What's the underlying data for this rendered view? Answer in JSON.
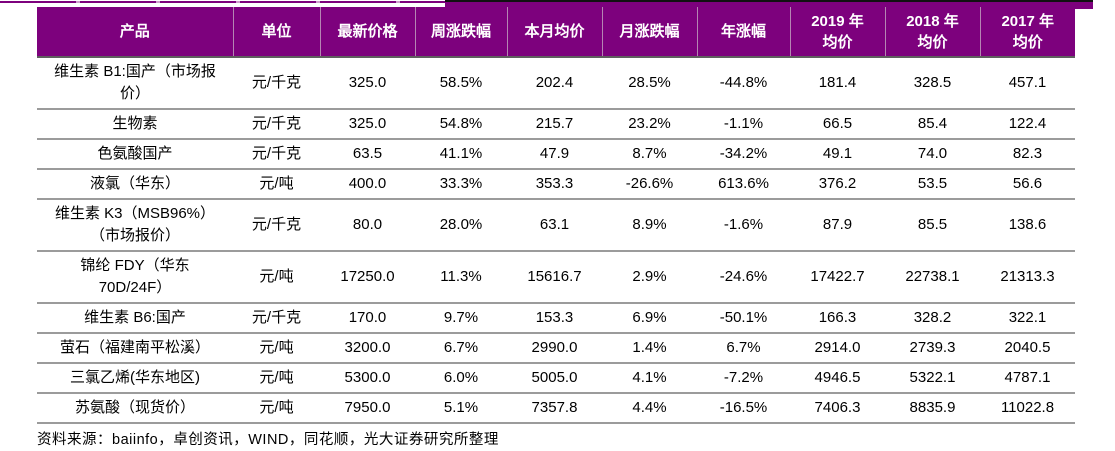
{
  "colors": {
    "header_bg": "#7d017d",
    "header_text": "#ffffff",
    "row_border": "#9b9b9b",
    "body_text": "#000000",
    "top_black_line": "#111111"
  },
  "table": {
    "columns": [
      {
        "label": "产品"
      },
      {
        "label": "单位"
      },
      {
        "label": "最新价格"
      },
      {
        "label": "周涨跌幅"
      },
      {
        "label": "本月均价"
      },
      {
        "label": "月涨跌幅"
      },
      {
        "label": "年涨幅"
      },
      {
        "label": "2019 年",
        "label2": "均价"
      },
      {
        "label": "2018 年",
        "label2": "均价"
      },
      {
        "label": "2017 年",
        "label2": "均价"
      }
    ],
    "rows": [
      [
        "维生素 B1:国产（市场报价）",
        "元/千克",
        "325.0",
        "58.5%",
        "202.4",
        "28.5%",
        "-44.8%",
        "181.4",
        "328.5",
        "457.1"
      ],
      [
        "生物素",
        "元/千克",
        "325.0",
        "54.8%",
        "215.7",
        "23.2%",
        "-1.1%",
        "66.5",
        "85.4",
        "122.4"
      ],
      [
        "色氨酸国产",
        "元/千克",
        "63.5",
        "41.1%",
        "47.9",
        "8.7%",
        "-34.2%",
        "49.1",
        "74.0",
        "82.3"
      ],
      [
        "液氯（华东）",
        "元/吨",
        "400.0",
        "33.3%",
        "353.3",
        "-26.6%",
        "613.6%",
        "376.2",
        "53.5",
        "56.6"
      ],
      [
        "维生素 K3（MSB96%）（市场报价）",
        "元/千克",
        "80.0",
        "28.0%",
        "63.1",
        "8.9%",
        "-1.6%",
        "87.9",
        "85.5",
        "138.6"
      ],
      [
        "锦纶 FDY（华东 70D/24F）",
        "元/吨",
        "17250.0",
        "11.3%",
        "15616.7",
        "2.9%",
        "-24.6%",
        "17422.7",
        "22738.1",
        "21313.3"
      ],
      [
        "维生素 B6:国产",
        "元/千克",
        "170.0",
        "9.7%",
        "153.3",
        "6.9%",
        "-50.1%",
        "166.3",
        "328.2",
        "322.1"
      ],
      [
        "萤石（福建南平松溪）",
        "元/吨",
        "3200.0",
        "6.7%",
        "2990.0",
        "1.4%",
        "6.7%",
        "2914.0",
        "2739.3",
        "2040.5"
      ],
      [
        "三氯乙烯(华东地区)",
        "元/吨",
        "5300.0",
        "6.0%",
        "5005.0",
        "4.1%",
        "-7.2%",
        "4946.5",
        "5322.1",
        "4787.1"
      ],
      [
        "苏氨酸（现货价）",
        "元/吨",
        "7950.0",
        "5.1%",
        "7357.8",
        "4.4%",
        "-16.5%",
        "7406.3",
        "8835.9",
        "11022.8"
      ]
    ]
  },
  "footer": {
    "source": "资料来源：baiinfo，卓创资讯，WIND，同花顺，光大证券研究所整理"
  }
}
